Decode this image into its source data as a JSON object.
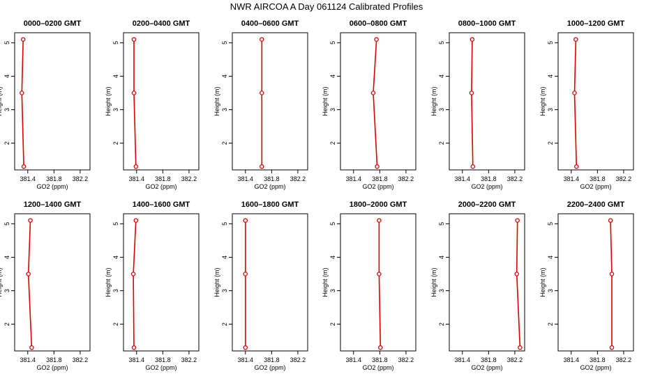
{
  "title": "NWR AIRCOA A  Day 061124  Calibrated Profiles",
  "colors": {
    "profile": "#dd0000",
    "axis": "#000000"
  },
  "chart_data": [
    {
      "type": "line",
      "title": "0000–0200 GMT",
      "xlabel": "GO2 (ppm)",
      "ylabel": "Height (m)",
      "xlim": [
        381.2,
        382.35
      ],
      "ylim": [
        1.2,
        5.3
      ],
      "xticks": [
        381.4,
        381.8,
        382.2
      ],
      "yticks": [
        2,
        3,
        4,
        5
      ],
      "series": [
        {
          "x": [
            381.33,
            381.31,
            381.34
          ],
          "y": [
            5.1,
            3.5,
            1.3
          ]
        }
      ]
    },
    {
      "type": "line",
      "title": "0200–0400 GMT",
      "xlabel": "GO2 (ppm)",
      "ylabel": "Height (m)",
      "xlim": [
        381.2,
        382.35
      ],
      "ylim": [
        1.2,
        5.3
      ],
      "xticks": [
        381.4,
        381.8,
        382.2
      ],
      "yticks": [
        2,
        3,
        4,
        5
      ],
      "series": [
        {
          "x": [
            381.36,
            381.36,
            381.39
          ],
          "y": [
            5.1,
            3.5,
            1.3
          ]
        }
      ]
    },
    {
      "type": "line",
      "title": "0400–0600 GMT",
      "xlabel": "GO2 (ppm)",
      "ylabel": "Height (m)",
      "xlim": [
        381.2,
        382.35
      ],
      "ylim": [
        1.2,
        5.3
      ],
      "xticks": [
        381.4,
        381.8,
        382.2
      ],
      "yticks": [
        2,
        3,
        4,
        5
      ],
      "series": [
        {
          "x": [
            381.65,
            381.65,
            381.65
          ],
          "y": [
            5.1,
            3.5,
            1.3
          ]
        }
      ]
    },
    {
      "type": "line",
      "title": "0600–0800 GMT",
      "xlabel": "GO2 (ppm)",
      "ylabel": "Height (m)",
      "xlim": [
        381.2,
        382.35
      ],
      "ylim": [
        1.2,
        5.3
      ],
      "xticks": [
        381.4,
        381.8,
        382.2
      ],
      "yticks": [
        2,
        3,
        4,
        5
      ],
      "series": [
        {
          "x": [
            381.75,
            381.7,
            381.76
          ],
          "y": [
            5.1,
            3.5,
            1.3
          ]
        }
      ]
    },
    {
      "type": "line",
      "title": "0800–1000 GMT",
      "xlabel": "GO2 (ppm)",
      "ylabel": "Height (m)",
      "xlim": [
        381.2,
        382.35
      ],
      "ylim": [
        1.2,
        5.3
      ],
      "xticks": [
        381.4,
        381.8,
        382.2
      ],
      "yticks": [
        2,
        3,
        4,
        5
      ],
      "series": [
        {
          "x": [
            381.55,
            381.54,
            381.56
          ],
          "y": [
            5.1,
            3.5,
            1.3
          ]
        }
      ]
    },
    {
      "type": "line",
      "title": "1000–1200 GMT",
      "xlabel": "GO2 (ppm)",
      "ylabel": "Height (m)",
      "xlim": [
        381.2,
        382.35
      ],
      "ylim": [
        1.2,
        5.3
      ],
      "xticks": [
        381.4,
        381.8,
        382.2
      ],
      "yticks": [
        2,
        3,
        4,
        5
      ],
      "series": [
        {
          "x": [
            381.47,
            381.45,
            381.48
          ],
          "y": [
            5.1,
            3.5,
            1.3
          ]
        }
      ]
    },
    {
      "type": "line",
      "title": "1200–1400 GMT",
      "xlabel": "GO2 (ppm)",
      "ylabel": "Height (m)",
      "xlim": [
        381.2,
        382.35
      ],
      "ylim": [
        1.2,
        5.3
      ],
      "xticks": [
        381.4,
        381.8,
        382.2
      ],
      "yticks": [
        2,
        3,
        4,
        5
      ],
      "series": [
        {
          "x": [
            381.44,
            381.41,
            381.46
          ],
          "y": [
            5.1,
            3.5,
            1.3
          ]
        }
      ]
    },
    {
      "type": "line",
      "title": "1400–1600 GMT",
      "xlabel": "GO2 (ppm)",
      "ylabel": "Height (m)",
      "xlim": [
        381.2,
        382.35
      ],
      "ylim": [
        1.2,
        5.3
      ],
      "xticks": [
        381.4,
        381.8,
        382.2
      ],
      "yticks": [
        2,
        3,
        4,
        5
      ],
      "series": [
        {
          "x": [
            381.39,
            381.35,
            381.36
          ],
          "y": [
            5.1,
            3.5,
            1.3
          ]
        }
      ]
    },
    {
      "type": "line",
      "title": "1600–1800 GMT",
      "xlabel": "GO2 (ppm)",
      "ylabel": "Height (m)",
      "xlim": [
        381.2,
        382.35
      ],
      "ylim": [
        1.2,
        5.3
      ],
      "xticks": [
        381.4,
        381.8,
        382.2
      ],
      "yticks": [
        2,
        3,
        4,
        5
      ],
      "series": [
        {
          "x": [
            381.4,
            381.4,
            381.4
          ],
          "y": [
            5.1,
            3.5,
            1.3
          ]
        }
      ]
    },
    {
      "type": "line",
      "title": "1800–2000 GMT",
      "xlabel": "GO2 (ppm)",
      "ylabel": "Height (m)",
      "xlim": [
        381.2,
        382.35
      ],
      "ylim": [
        1.2,
        5.3
      ],
      "xticks": [
        381.4,
        381.8,
        382.2
      ],
      "yticks": [
        2,
        3,
        4,
        5
      ],
      "series": [
        {
          "x": [
            381.79,
            381.79,
            381.81
          ],
          "y": [
            5.1,
            3.5,
            1.3
          ]
        }
      ]
    },
    {
      "type": "line",
      "title": "2000–2200 GMT",
      "xlabel": "GO2 (ppm)",
      "ylabel": "Height (m)",
      "xlim": [
        381.2,
        382.35
      ],
      "ylim": [
        1.2,
        5.3
      ],
      "xticks": [
        381.4,
        381.8,
        382.2
      ],
      "yticks": [
        2,
        3,
        4,
        5
      ],
      "series": [
        {
          "x": [
            382.24,
            382.23,
            382.28
          ],
          "y": [
            5.1,
            3.5,
            1.3
          ]
        }
      ]
    },
    {
      "type": "line",
      "title": "2200–2400 GMT",
      "xlabel": "GO2 (ppm)",
      "ylabel": "Height (m)",
      "xlim": [
        381.2,
        382.35
      ],
      "ylim": [
        1.2,
        5.3
      ],
      "xticks": [
        381.4,
        381.8,
        382.2
      ],
      "yticks": [
        2,
        3,
        4,
        5
      ],
      "series": [
        {
          "x": [
            382.0,
            382.02,
            382.02
          ],
          "y": [
            5.1,
            3.5,
            1.3
          ]
        }
      ]
    }
  ]
}
